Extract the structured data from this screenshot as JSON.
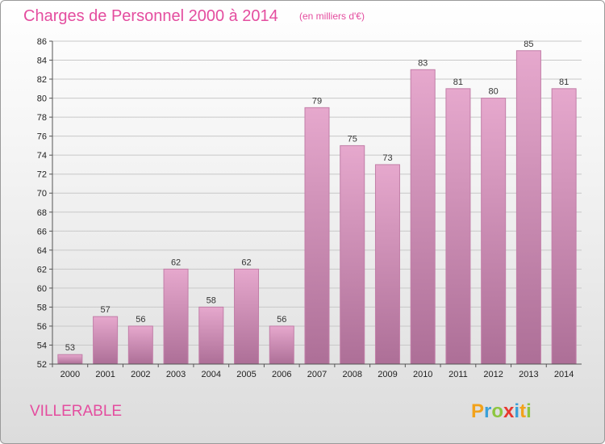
{
  "chart_data": {
    "type": "bar",
    "title": "Charges de Personnel 2000 à 2014",
    "subtitle": "(en milliers d'€)",
    "categories": [
      "2000",
      "2001",
      "2002",
      "2003",
      "2004",
      "2005",
      "2006",
      "2007",
      "2008",
      "2009",
      "2010",
      "2011",
      "2012",
      "2013",
      "2014"
    ],
    "values": [
      53,
      57,
      56,
      62,
      58,
      62,
      56,
      79,
      75,
      73,
      83,
      81,
      80,
      85,
      81
    ],
    "ylim": [
      52,
      86
    ],
    "yticks": [
      52,
      54,
      56,
      58,
      60,
      62,
      64,
      66,
      68,
      70,
      72,
      74,
      76,
      78,
      80,
      82,
      84,
      86
    ],
    "grid": true,
    "bar_color": "#d98fba"
  },
  "footer": {
    "place_name": "VILLERABLE",
    "logo_letters": [
      "P",
      "r",
      "o",
      "x",
      "i",
      "t",
      "i"
    ],
    "logo_colors": [
      "#f2a21b",
      "#3aa0d8",
      "#8dc63f",
      "#e8382f",
      "#3aa0d8",
      "#f2a21b",
      "#8dc63f"
    ]
  }
}
